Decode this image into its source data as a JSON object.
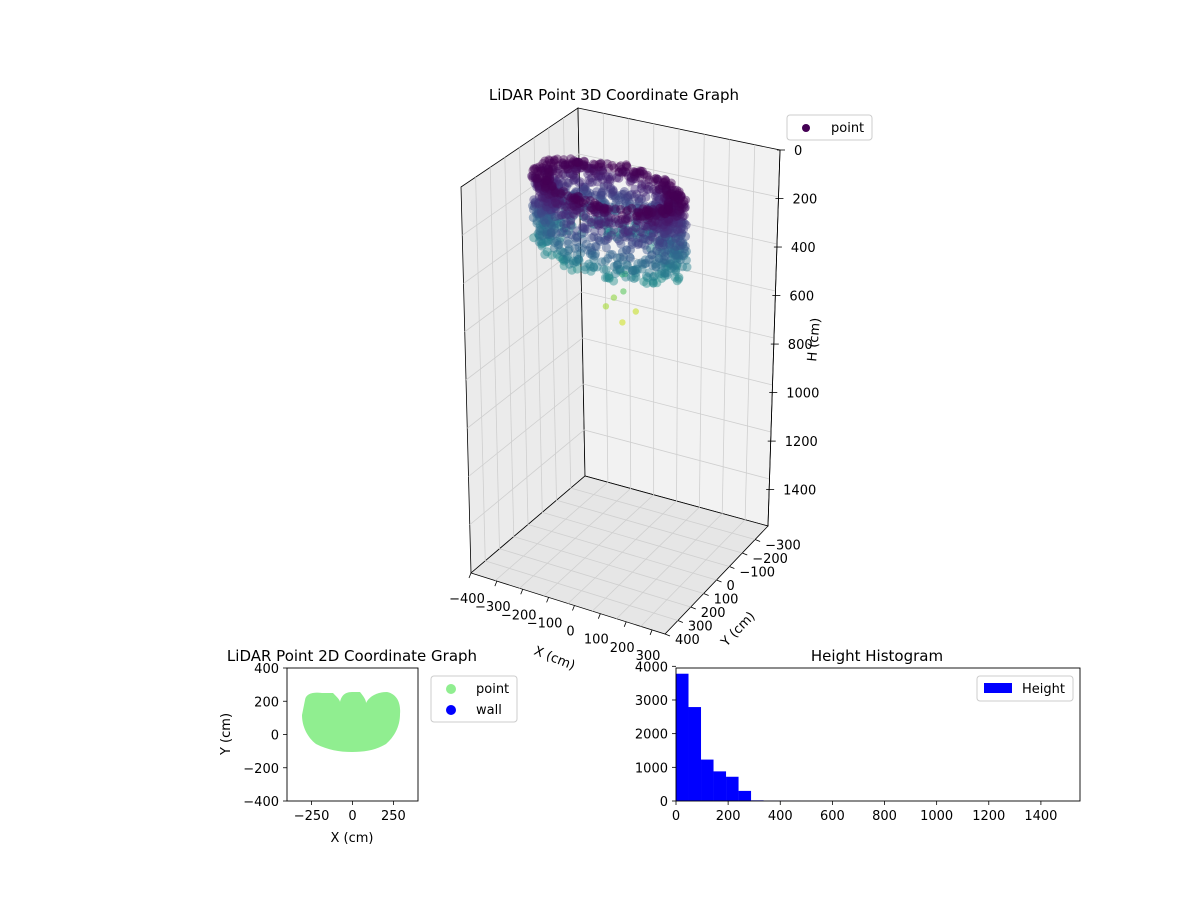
{
  "chart_data": [
    {
      "type": "scatter3d",
      "title": "LiDAR Point 3D Coordinate Graph",
      "xlabel": "X (cm)",
      "ylabel": "Y (cm)",
      "zlabel": "H (cm)",
      "xticks": [
        "−400",
        "−300",
        "−200",
        "−100",
        "0",
        "100",
        "200",
        "300"
      ],
      "yticks": [
        "−300",
        "−200",
        "−100",
        "0",
        "100",
        "200",
        "300",
        "400"
      ],
      "zticks": [
        "0",
        "200",
        "400",
        "600",
        "800",
        "1000",
        "1200",
        "1400"
      ],
      "xlim": [
        -400,
        350
      ],
      "ylim": [
        -400,
        400
      ],
      "zlim": [
        0,
        1550
      ],
      "zaxis_inverted": true,
      "legend": [
        "point"
      ],
      "legend_position": "top-right",
      "colormap": "viridis",
      "series": [
        {
          "name": "point",
          "description_points": [
            {
              "x": -250,
              "y": 150,
              "h": 0
            },
            {
              "x": 250,
              "y": 150,
              "h": 0
            },
            {
              "x": 0,
              "y": -100,
              "h": 0
            },
            {
              "x": 0,
              "y": 230,
              "h": 80
            },
            {
              "x": -250,
              "y": 150,
              "h": 200
            },
            {
              "x": 250,
              "y": 150,
              "h": 200
            },
            {
              "x": 0,
              "y": -100,
              "h": 300
            },
            {
              "x": 0,
              "y": 0,
              "h": 400
            },
            {
              "x": 20,
              "y": 30,
              "h": 450
            },
            {
              "x": -30,
              "y": 10,
              "h": 500
            },
            {
              "x": 40,
              "y": -20,
              "h": 550
            }
          ]
        }
      ]
    },
    {
      "type": "scatter",
      "title": "LiDAR Point 2D Coordinate Graph",
      "xlabel": "X (cm)",
      "ylabel": "Y (cm)",
      "xticks": [
        "−250",
        "0",
        "250"
      ],
      "yticks": [
        "−400",
        "−200",
        "0",
        "200",
        "400"
      ],
      "xlim": [
        -400,
        400
      ],
      "ylim": [
        -400,
        400
      ],
      "legend_position": "outside-right",
      "series": [
        {
          "name": "point",
          "color": "#90ee90",
          "region": "filled elliptical blob spanning x -290..290, y -110..260"
        },
        {
          "name": "wall",
          "color": "#0000ff",
          "points": []
        }
      ]
    },
    {
      "type": "histogram",
      "title": "Height Histogram",
      "xlabel": "",
      "ylabel": "",
      "xticks": [
        "0",
        "200",
        "400",
        "600",
        "800",
        "1000",
        "1200",
        "1400"
      ],
      "yticks": [
        "0",
        "1000",
        "2000",
        "3000",
        "4000"
      ],
      "xlim": [
        0,
        1550
      ],
      "ylim": [
        0,
        3950
      ],
      "legend": [
        "Height"
      ],
      "legend_position": "top-right",
      "series": [
        {
          "name": "Height",
          "color": "#0000ff",
          "bins": [
            {
              "start": 0,
              "end": 48,
              "count": 3780
            },
            {
              "start": 48,
              "end": 96,
              "count": 2790
            },
            {
              "start": 96,
              "end": 144,
              "count": 1230
            },
            {
              "start": 144,
              "end": 192,
              "count": 880
            },
            {
              "start": 192,
              "end": 240,
              "count": 720
            },
            {
              "start": 240,
              "end": 288,
              "count": 300
            },
            {
              "start": 288,
              "end": 336,
              "count": 20
            },
            {
              "start": 336,
              "end": 384,
              "count": 10
            },
            {
              "start": 384,
              "end": 432,
              "count": 8
            },
            {
              "start": 432,
              "end": 480,
              "count": 6
            },
            {
              "start": 480,
              "end": 528,
              "count": 4
            },
            {
              "start": 528,
              "end": 576,
              "count": 3
            }
          ]
        }
      ]
    }
  ]
}
